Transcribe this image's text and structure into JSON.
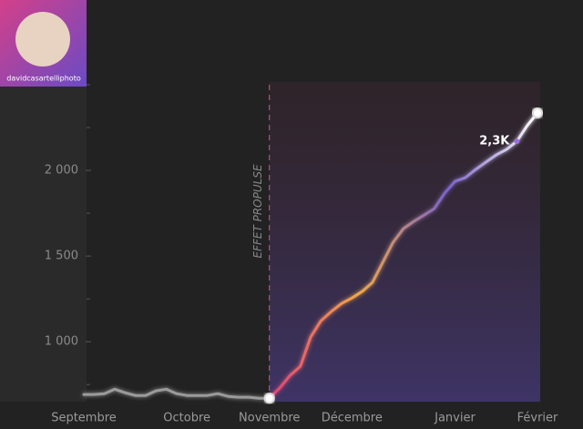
{
  "profile": {
    "username": "davidcasartelliphoto"
  },
  "chart_data": {
    "type": "line",
    "categories": [
      "Septembre",
      null,
      null,
      null,
      null,
      null,
      null,
      null,
      null,
      null,
      "Octobre",
      null,
      null,
      null,
      null,
      null,
      null,
      null,
      "Novembre",
      null,
      null,
      null,
      null,
      null,
      null,
      null,
      "Décembre",
      null,
      null,
      null,
      null,
      null,
      null,
      null,
      null,
      null,
      "Janvier",
      null,
      null,
      null,
      null,
      null,
      null,
      null,
      "Février"
    ],
    "values": [
      692,
      692,
      697,
      723,
      702,
      686,
      686,
      713,
      723,
      697,
      686,
      686,
      686,
      697,
      681,
      676,
      676,
      670,
      670,
      729,
      803,
      856,
      1027,
      1122,
      1176,
      1223,
      1255,
      1293,
      1346,
      1463,
      1580,
      1660,
      1702,
      1739,
      1777,
      1867,
      1936,
      1957,
      2005,
      2048,
      2090,
      2122,
      2170,
      2261,
      2335
    ],
    "color": "#9a9a9a",
    "highlight_colors": [
      "#e0407a",
      "#f0a848",
      "#7a62c8",
      "#ffffff"
    ],
    "ylim": [
      650,
      2500
    ],
    "yticks": [
      {
        "value": 1000,
        "label": "1 000"
      },
      {
        "value": 1500,
        "label": "1 500"
      },
      {
        "value": 2000,
        "label": "2 000"
      }
    ],
    "minor_yticks": [
      750,
      1250,
      1750,
      2250,
      2500
    ],
    "marker": {
      "text": "EFFET PROPULSE",
      "category": "Novembre"
    },
    "annotation": "2,3K"
  }
}
